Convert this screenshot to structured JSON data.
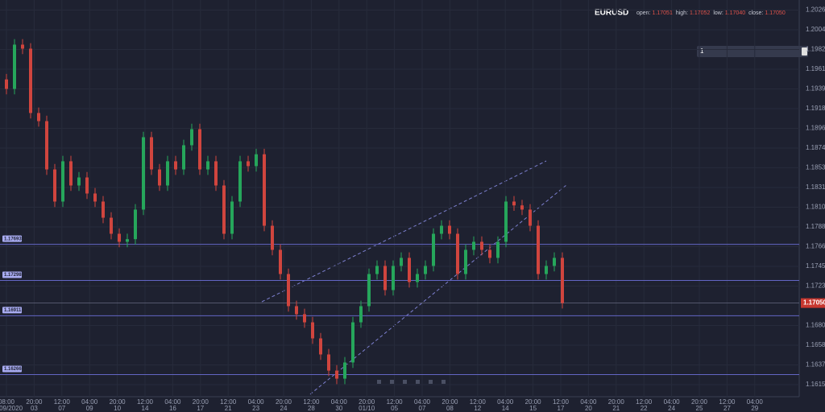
{
  "chart_data": {
    "type": "candlestick",
    "title": "EURUSD",
    "ohlc_header": [
      {
        "label": "open:",
        "value": "1.17051"
      },
      {
        "label": "high:",
        "value": "1.17052"
      },
      {
        "label": "low:",
        "value": "1.17040"
      },
      {
        "label": "close:",
        "value": "1.17050"
      }
    ],
    "selector_value": "1",
    "up_color": "#26a65b",
    "down_color": "#d0453e",
    "level_color": "#6366c4",
    "grid": true,
    "open": [
      1.195,
      1.19396,
      1.19881,
      1.19837,
      1.19132,
      1.19043,
      1.18514,
      1.18162,
      1.18603,
      1.18338,
      1.18426,
      1.1825,
      1.18162,
      1.17985,
      1.17809,
      1.17721,
      1.1775,
      1.18074,
      1.18867,
      1.18514,
      1.18338,
      1.18603,
      1.18514,
      1.18779,
      1.18955,
      1.18514,
      1.18603,
      1.18338,
      1.17809,
      1.18162,
      1.18603,
      1.1855,
      1.1868,
      1.17897,
      1.17633,
      1.17368,
      1.17016,
      1.16928,
      1.16839,
      1.16663,
      1.16487,
      1.1631,
      1.16222,
      1.16399,
      1.16839,
      1.17016,
      1.17368,
      1.17457,
      1.17192,
      1.17457,
      1.17545,
      1.1728,
      1.17368,
      1.17457,
      1.17809,
      1.17897,
      1.17809,
      1.17368,
      1.17633,
      1.17721,
      1.17633,
      1.17545,
      1.17721,
      1.18162,
      1.1812,
      1.18074,
      1.17897,
      1.17368,
      1.17457,
      1.17545
    ],
    "high": [
      1.1956,
      1.19941,
      1.19941,
      1.19897,
      1.19192,
      1.19103,
      1.18574,
      1.18663,
      1.18663,
      1.18486,
      1.18486,
      1.1831,
      1.18222,
      1.18045,
      1.17869,
      1.1781,
      1.18134,
      1.18927,
      1.18927,
      1.18574,
      1.18663,
      1.18663,
      1.18839,
      1.19015,
      1.19015,
      1.18663,
      1.18663,
      1.18398,
      1.18222,
      1.18663,
      1.18663,
      1.1874,
      1.1874,
      1.17957,
      1.17693,
      1.17428,
      1.17076,
      1.16988,
      1.16899,
      1.16723,
      1.16547,
      1.1637,
      1.16459,
      1.16899,
      1.17076,
      1.17428,
      1.17517,
      1.17517,
      1.17517,
      1.17605,
      1.17605,
      1.17428,
      1.17517,
      1.17869,
      1.17957,
      1.17957,
      1.17869,
      1.17693,
      1.17781,
      1.17781,
      1.17693,
      1.17781,
      1.18222,
      1.18222,
      1.1818,
      1.18134,
      1.17957,
      1.17517,
      1.17605,
      1.17605
    ],
    "low": [
      1.19336,
      1.19336,
      1.19777,
      1.19072,
      1.18983,
      1.18454,
      1.18102,
      1.18102,
      1.18278,
      1.18278,
      1.1819,
      1.18102,
      1.17925,
      1.17749,
      1.17661,
      1.17661,
      1.1769,
      1.18014,
      1.18454,
      1.18278,
      1.18278,
      1.18454,
      1.18454,
      1.18719,
      1.18454,
      1.18454,
      1.18278,
      1.17749,
      1.17749,
      1.18102,
      1.1849,
      1.1849,
      1.17837,
      1.17573,
      1.17308,
      1.16956,
      1.16868,
      1.16779,
      1.16603,
      1.16427,
      1.1625,
      1.16162,
      1.16162,
      1.16339,
      1.16779,
      1.16956,
      1.17308,
      1.17132,
      1.17132,
      1.17397,
      1.1722,
      1.1722,
      1.17308,
      1.17397,
      1.17749,
      1.17749,
      1.17308,
      1.17308,
      1.17573,
      1.17573,
      1.17485,
      1.17485,
      1.17661,
      1.1806,
      1.18014,
      1.17837,
      1.17308,
      1.17308,
      1.17397,
      1.1699
    ],
    "close": [
      1.19396,
      1.19881,
      1.19837,
      1.19132,
      1.19043,
      1.18514,
      1.18162,
      1.18603,
      1.18338,
      1.18426,
      1.1825,
      1.18162,
      1.17985,
      1.17809,
      1.17721,
      1.1775,
      1.18074,
      1.18867,
      1.18514,
      1.18338,
      1.18603,
      1.18514,
      1.18779,
      1.18955,
      1.18514,
      1.18603,
      1.18338,
      1.17809,
      1.18162,
      1.18603,
      1.1855,
      1.1868,
      1.17897,
      1.17633,
      1.17368,
      1.17016,
      1.16928,
      1.16839,
      1.16663,
      1.16487,
      1.1631,
      1.16222,
      1.16399,
      1.16839,
      1.17016,
      1.17368,
      1.17457,
      1.17192,
      1.17457,
      1.17545,
      1.1728,
      1.17368,
      1.17457,
      1.17809,
      1.17897,
      1.17809,
      1.17368,
      1.17633,
      1.17721,
      1.17633,
      1.17545,
      1.17721,
      1.18162,
      1.1812,
      1.18074,
      1.17897,
      1.17368,
      1.17457,
      1.17545,
      1.1705
    ],
    "ylim": [
      1.16024,
      1.2037
    ],
    "yticks": [
      {
        "value": 1.2026,
        "label": "1.20260"
      },
      1.20044,
      1.19828,
      1.19612,
      1.19396,
      {
        "value": 1.1918,
        "label": "1.19180"
      },
      1.18964,
      1.18748,
      1.18533,
      1.18316,
      {
        "value": 1.181,
        "label": "1.18100"
      },
      1.17884,
      1.17668,
      1.17452,
      1.17236,
      1.16804,
      1.16588,
      1.16372,
      1.16156
    ],
    "levels": [
      1.17693,
      1.17298,
      1.16911,
      1.16266
    ],
    "price_tag": {
      "value": 1.1705,
      "label": "1.17050"
    },
    "x_labels": [
      {
        "time": "08:00",
        "date": "01/09/2020"
      },
      {
        "time": "20:00",
        "date": "03"
      },
      {
        "time": "12:00",
        "date": "07"
      },
      {
        "time": "04:00",
        "date": "09"
      },
      {
        "time": "20:00",
        "date": "10"
      },
      {
        "time": "12:00",
        "date": "14"
      },
      {
        "time": "04:00",
        "date": "16"
      },
      {
        "time": "20:00",
        "date": "17"
      },
      {
        "time": "12:00",
        "date": "21"
      },
      {
        "time": "04:00",
        "date": "23"
      },
      {
        "time": "20:00",
        "date": "24"
      },
      {
        "time": "12:00",
        "date": "28"
      },
      {
        "time": "04:00",
        "date": "30"
      },
      {
        "time": "20:00",
        "date": "01/10"
      },
      {
        "time": "12:00",
        "date": "05"
      },
      {
        "time": "04:00",
        "date": "07"
      },
      {
        "time": "20:00",
        "date": "08"
      },
      {
        "time": "12:00",
        "date": "12"
      },
      {
        "time": "04:00",
        "date": "14"
      },
      {
        "time": "20:00",
        "date": "15"
      },
      {
        "time": "12:00",
        "date": "17"
      },
      {
        "time": "04:00",
        "date": "20"
      },
      {
        "time": "20:00",
        "date": "21"
      },
      {
        "time": "12:00",
        "date": "22"
      },
      {
        "time": "04:00",
        "date": "24"
      },
      {
        "time": "20:00",
        "date": "25"
      },
      {
        "time": "12:00",
        "date": "27"
      },
      {
        "time": "04:00",
        "date": "29"
      }
    ]
  }
}
